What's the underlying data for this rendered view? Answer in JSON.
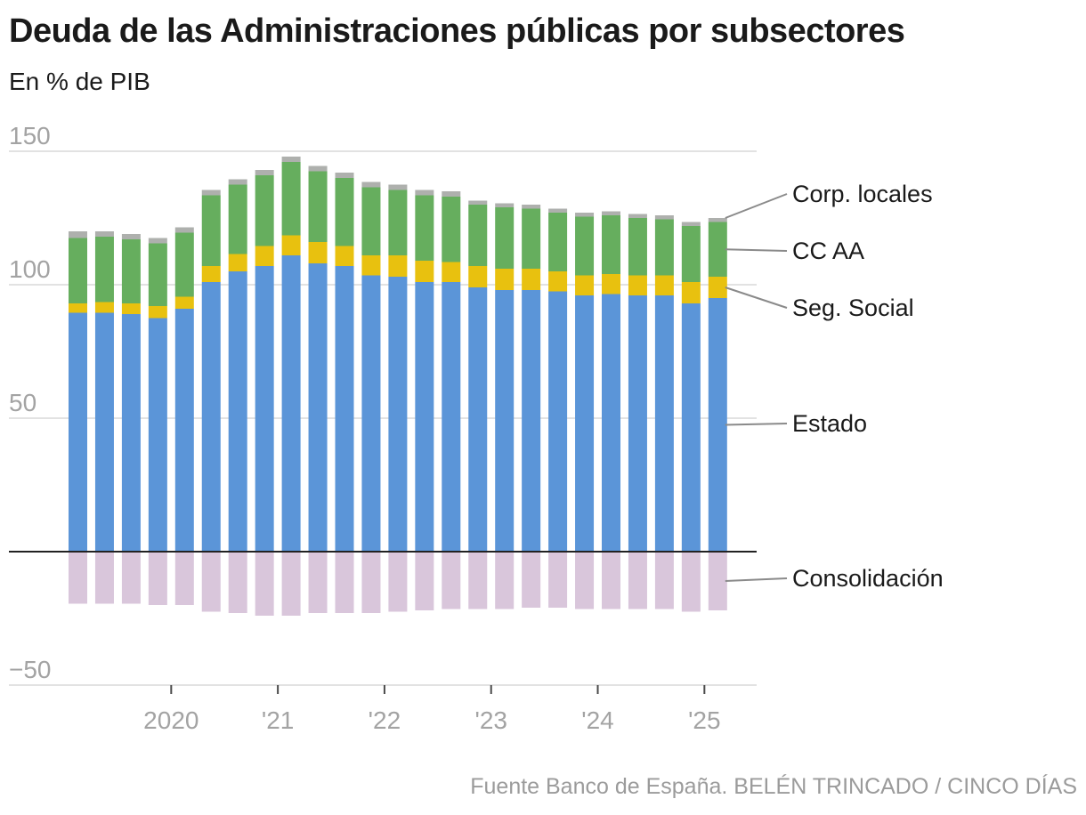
{
  "header": {
    "title": "Deuda de las Administraciones públicas por subsectores",
    "subtitle": "En % de PIB"
  },
  "footer": {
    "source": "Fuente Banco de España. BELÉN TRINCADO / CINCO DÍAS"
  },
  "colors": {
    "Estado": "#5b95d8",
    "Seg. Social": "#e8c10f",
    "CC AA": "#66ae5e",
    "Corp. locales": "#aeb0ad",
    "Consolidación": "#d9c6db",
    "grid": "#d9d9d9",
    "zero": "#222222",
    "leader": "#8a8a8a"
  },
  "chart_data": {
    "type": "bar",
    "stacked": true,
    "title": "Deuda de las Administraciones públicas por subsectores",
    "ylabel": "En % de PIB",
    "ylim": [
      -50,
      150
    ],
    "yticks": [
      {
        "value": 150,
        "label": "150"
      },
      {
        "value": 100,
        "label": "100"
      },
      {
        "value": 50,
        "label": "50"
      },
      {
        "value": -50,
        "label": "−50"
      }
    ],
    "grid": true,
    "categories": [
      "2019-Q1",
      "2019-Q2",
      "2019-Q3",
      "2019-Q4",
      "2020-Q1",
      "2020-Q2",
      "2020-Q3",
      "2020-Q4",
      "2021-Q1",
      "2021-Q2",
      "2021-Q3",
      "2021-Q4",
      "2022-Q1",
      "2022-Q2",
      "2022-Q3",
      "2022-Q4",
      "2023-Q1",
      "2023-Q2",
      "2023-Q3",
      "2023-Q4",
      "2024-Q1",
      "2024-Q2",
      "2024-Q3",
      "2024-Q4",
      "2025-Q1"
    ],
    "x_ticks": [
      {
        "label": "2020",
        "index": 3.5
      },
      {
        "label": "'21",
        "index": 7.5
      },
      {
        "label": "'22",
        "index": 11.5
      },
      {
        "label": "'23",
        "index": 15.5
      },
      {
        "label": "'24",
        "index": 19.5
      },
      {
        "label": "'25",
        "index": 23.5
      }
    ],
    "series": [
      {
        "name": "Estado",
        "values": [
          89.5,
          89.5,
          89,
          87.5,
          91,
          101,
          105,
          107,
          111,
          108,
          107,
          103.5,
          103,
          101,
          101,
          99,
          98,
          98,
          97.5,
          96,
          96.5,
          96,
          96,
          93,
          95
        ]
      },
      {
        "name": "Seg. Social",
        "values": [
          3.5,
          4,
          4,
          4.5,
          4.5,
          6,
          6.5,
          7.5,
          7.5,
          8,
          7.5,
          7.5,
          8,
          8,
          7.5,
          8,
          8,
          8,
          7.5,
          7.5,
          7.5,
          7.5,
          7.5,
          8,
          8
        ]
      },
      {
        "name": "CC AA",
        "values": [
          24.5,
          24.5,
          24,
          23.5,
          24,
          26.5,
          26,
          26.5,
          27.5,
          26.5,
          25.5,
          25.5,
          24.5,
          24.5,
          24.5,
          23,
          23,
          22.5,
          22,
          22,
          22,
          21.5,
          21,
          21,
          20.5
        ]
      },
      {
        "name": "Corp. locales",
        "values": [
          2.5,
          2,
          2,
          2,
          2,
          2,
          2,
          2,
          2,
          2,
          2,
          2,
          2,
          2,
          2,
          1.5,
          1.5,
          1.5,
          1.5,
          1.5,
          1.5,
          1.5,
          1.5,
          1.5,
          1.5
        ]
      },
      {
        "name": "Consolidación",
        "values": [
          -19.5,
          -19.5,
          -19.5,
          -20,
          -20,
          -22.5,
          -23,
          -24,
          -24,
          -23,
          -23,
          -23,
          -22.5,
          -22,
          -21.5,
          -21.5,
          -21.5,
          -21,
          -21,
          -21.5,
          -21.5,
          -21.5,
          -21.5,
          -22.5,
          -22
        ]
      }
    ],
    "legend_labels": [
      {
        "series": "Corp. locales",
        "label": "Corp. locales"
      },
      {
        "series": "CC AA",
        "label": "CC AA"
      },
      {
        "series": "Seg. Social",
        "label": "Seg. Social"
      },
      {
        "series": "Estado",
        "label": "Estado"
      },
      {
        "series": "Consolidación",
        "label": "Consolidación"
      }
    ],
    "legend_placement": "right"
  }
}
